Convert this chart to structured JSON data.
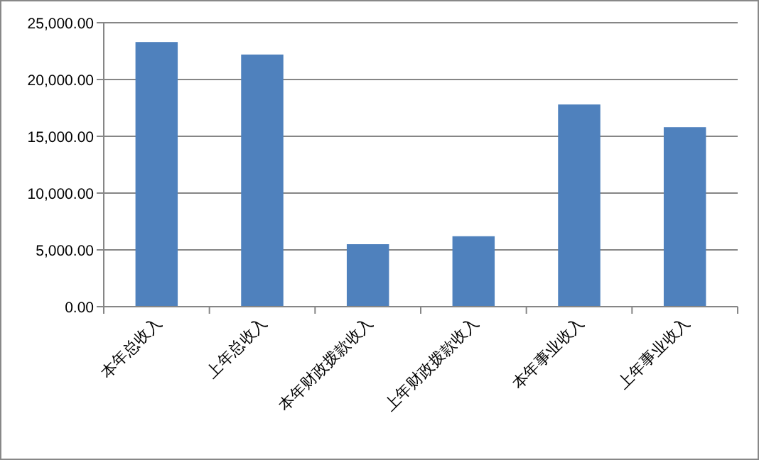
{
  "chart_data": {
    "type": "bar",
    "categories": [
      "本年总收入",
      "上年总收入",
      "本年财政拨款收入",
      "上年财政拨款收入",
      "本年事业收入",
      "上年事业收入"
    ],
    "values": [
      23300,
      22200,
      5500,
      6200,
      17800,
      15800
    ],
    "color": "#4f81bd",
    "ylim": [
      0,
      25000
    ],
    "yticks": [
      {
        "value": 0,
        "label": "0.00"
      },
      {
        "value": 5000,
        "label": "5,000.00"
      },
      {
        "value": 10000,
        "label": "10,000.00"
      },
      {
        "value": 15000,
        "label": "15,000.00"
      },
      {
        "value": 20000,
        "label": "20,000.00"
      },
      {
        "value": 25000,
        "label": "25,000.00"
      }
    ],
    "grid": "y"
  }
}
